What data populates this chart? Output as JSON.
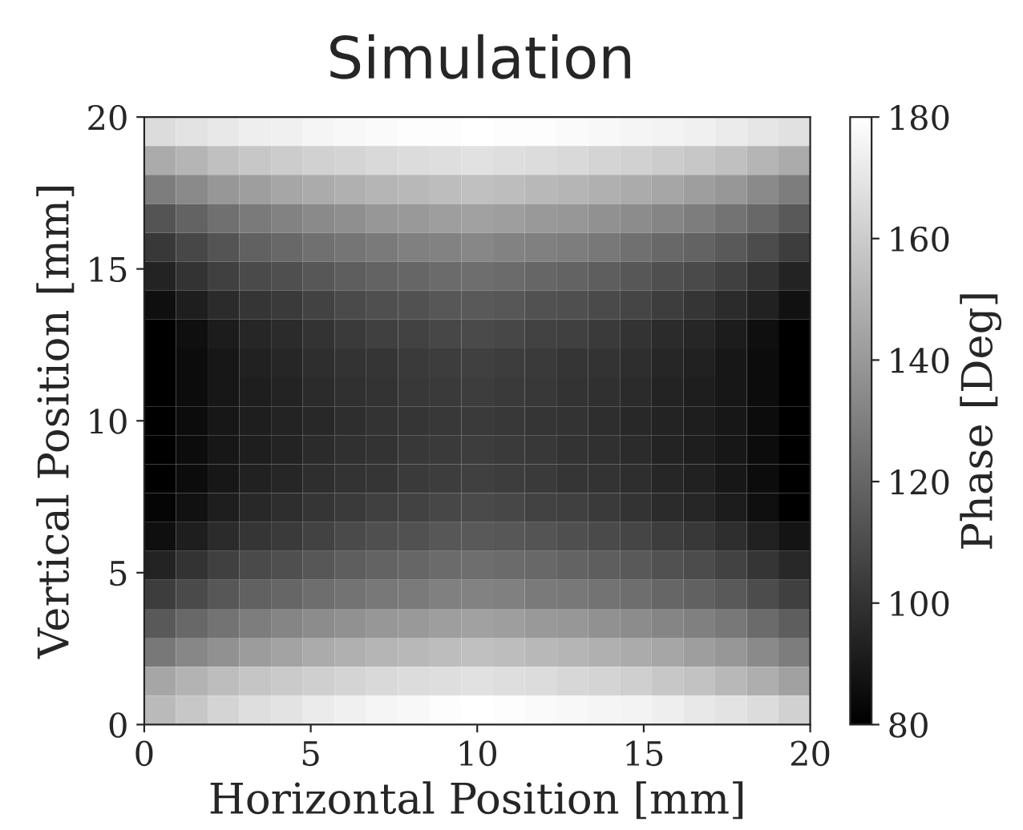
{
  "chart_data": {
    "type": "heatmap",
    "title": "Simulation",
    "xlabel": "Horizontal Position [mm]",
    "ylabel": "Vertical Position [mm]",
    "clabel": "Phase [Deg]",
    "xlim": [
      0,
      20
    ],
    "xticks": [
      0,
      5,
      10,
      15,
      20
    ],
    "ylim": [
      0,
      20
    ],
    "yticks": [
      0,
      5,
      10,
      15,
      20
    ],
    "clim": [
      80,
      180
    ],
    "cticks": [
      80,
      100,
      120,
      140,
      160,
      180
    ],
    "cells": [
      [
        166,
        169,
        171,
        173,
        174,
        176,
        177,
        178,
        179,
        179,
        180,
        179,
        179,
        178,
        177,
        176,
        175,
        174,
        172,
        170,
        168
      ],
      [
        147,
        151,
        155,
        158,
        160,
        162,
        163,
        165,
        166,
        167,
        168,
        167,
        166,
        165,
        163,
        162,
        160,
        158,
        155,
        151,
        147
      ],
      [
        129,
        134,
        139,
        142,
        145,
        147,
        149,
        151,
        152,
        154,
        155,
        154,
        152,
        151,
        149,
        147,
        145,
        142,
        139,
        134,
        129
      ],
      [
        113,
        119,
        124,
        128,
        131,
        134,
        136,
        139,
        140,
        142,
        143,
        142,
        140,
        139,
        137,
        135,
        132,
        129,
        125,
        121,
        115
      ],
      [
        102,
        108,
        113,
        118,
        121,
        124,
        126,
        128,
        130,
        131,
        133,
        131,
        130,
        129,
        127,
        124,
        121,
        119,
        115,
        110,
        104
      ],
      [
        94,
        100,
        105,
        109,
        111,
        114,
        117,
        119,
        120,
        122,
        123,
        122,
        120,
        119,
        117,
        114,
        111,
        109,
        105,
        100,
        94
      ],
      [
        86,
        92,
        97,
        101,
        103,
        106,
        109,
        111,
        112,
        114,
        115,
        114,
        112,
        111,
        109,
        107,
        104,
        101,
        97,
        93,
        87
      ],
      [
        80,
        86,
        91,
        95,
        97,
        100,
        103,
        105,
        106,
        108,
        109,
        108,
        106,
        105,
        103,
        100,
        97,
        95,
        91,
        86,
        80
      ],
      [
        80,
        85,
        89,
        93,
        95,
        98,
        100,
        101,
        103,
        104,
        105,
        104,
        103,
        101,
        100,
        98,
        95,
        93,
        89,
        85,
        80
      ],
      [
        80,
        85,
        89,
        92,
        94,
        97,
        99,
        100,
        102,
        103,
        104,
        103,
        102,
        100,
        99,
        97,
        94,
        92,
        89,
        85,
        80
      ],
      [
        80,
        85,
        89,
        92,
        94,
        96,
        98,
        100,
        101,
        102,
        103,
        102,
        101,
        100,
        98,
        96,
        94,
        92,
        89,
        85,
        80
      ],
      [
        80,
        85,
        89,
        92,
        94,
        97,
        99,
        100,
        102,
        103,
        104,
        103,
        102,
        100,
        99,
        97,
        94,
        92,
        89,
        85,
        80
      ],
      [
        80,
        85,
        89,
        93,
        95,
        98,
        100,
        101,
        103,
        104,
        105,
        104,
        103,
        101,
        100,
        98,
        95,
        93,
        89,
        85,
        80
      ],
      [
        82,
        87,
        92,
        96,
        98,
        101,
        103,
        105,
        106,
        108,
        109,
        108,
        106,
        105,
        103,
        100,
        97,
        95,
        91,
        86,
        80
      ],
      [
        86,
        92,
        97,
        101,
        103,
        106,
        109,
        111,
        112,
        114,
        115,
        114,
        113,
        111,
        109,
        107,
        104,
        102,
        98,
        93,
        88
      ],
      [
        94,
        100,
        105,
        109,
        111,
        114,
        117,
        119,
        120,
        122,
        123,
        122,
        121,
        119,
        117,
        115,
        112,
        110,
        106,
        101,
        96
      ],
      [
        104,
        109,
        114,
        118,
        120,
        123,
        125,
        127,
        128,
        130,
        131,
        130,
        128,
        127,
        125,
        123,
        120,
        118,
        115,
        110,
        105
      ],
      [
        115,
        121,
        125,
        129,
        132,
        135,
        137,
        139,
        140,
        142,
        143,
        142,
        140,
        139,
        137,
        135,
        132,
        130,
        127,
        122,
        117
      ],
      [
        127,
        133,
        137,
        141,
        144,
        147,
        149,
        151,
        152,
        154,
        155,
        154,
        152,
        151,
        149,
        147,
        145,
        142,
        139,
        134,
        129
      ],
      [
        145,
        150,
        154,
        157,
        159,
        161,
        163,
        165,
        166,
        167,
        168,
        167,
        166,
        164,
        163,
        161,
        158,
        156,
        152,
        148,
        143
      ],
      [
        153,
        158,
        163,
        167,
        169,
        172,
        174,
        176,
        177,
        179,
        180,
        179,
        178,
        177,
        176,
        175,
        173,
        171,
        169,
        166,
        162
      ]
    ]
  }
}
